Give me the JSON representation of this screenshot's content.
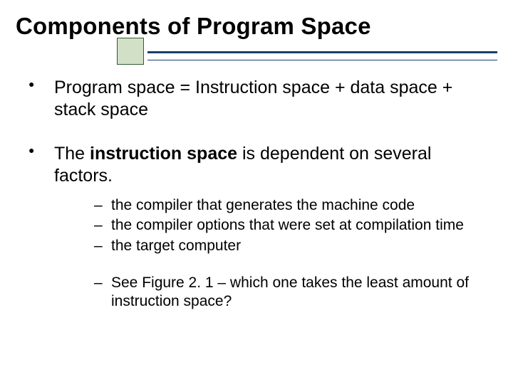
{
  "slide": {
    "title": "Components of Program Space",
    "accent_square_color": "#d3e0c8",
    "accent_square_border": "#335b33",
    "rule_color": "#1a3d6d",
    "bullets": [
      {
        "text": "Program space = Instruction space + data space + stack space"
      },
      {
        "pre": "The ",
        "bold": "instruction space",
        "post": " is dependent on several factors.",
        "sub1": [
          "the compiler that generates the machine code",
          "the compiler options that were set at compilation time",
          "the target computer"
        ],
        "sub2": [
          "See Figure 2. 1 – which one takes the least amount of instruction space?"
        ]
      }
    ]
  }
}
